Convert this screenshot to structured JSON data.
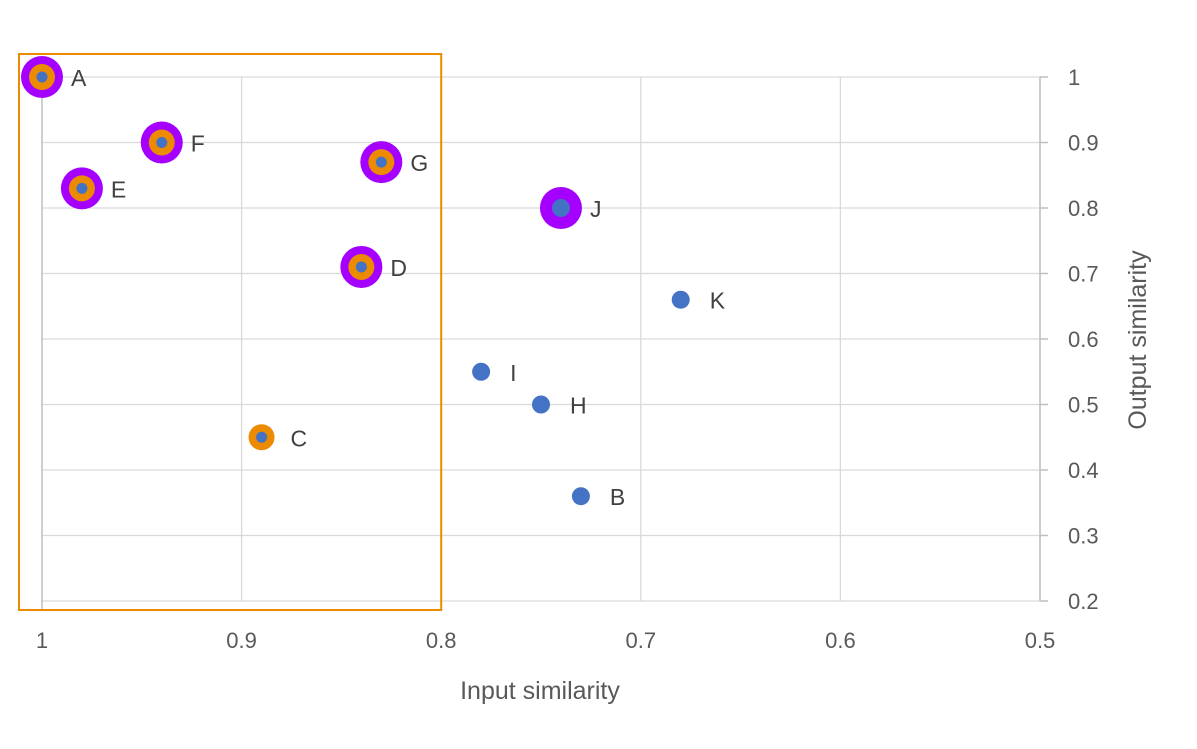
{
  "chart_data": {
    "type": "scatter",
    "title": "",
    "xlabel": "Input similarity",
    "ylabel": "Output similarity",
    "xlim": [
      1,
      0.5
    ],
    "ylim": [
      0.2,
      1
    ],
    "x_reversed": true,
    "y_axis_side": "right",
    "grid": true,
    "xticks": [
      "1",
      "0.9",
      "0.8",
      "0.7",
      "0.6",
      "0.5"
    ],
    "xtick_values": [
      1,
      0.9,
      0.8,
      0.7,
      0.6,
      0.5
    ],
    "yticks": [
      "0.2",
      "0.3",
      "0.4",
      "0.5",
      "0.6",
      "0.7",
      "0.8",
      "0.9",
      "1"
    ],
    "ytick_values": [
      0.2,
      0.3,
      0.4,
      0.5,
      0.6,
      0.7,
      0.8,
      0.9,
      1
    ],
    "highlight_region": {
      "x_range": [
        1,
        0.8
      ],
      "y_range": [
        0.2,
        1
      ],
      "color": "#ED8B00"
    },
    "colors": {
      "point": "#4472C4",
      "orange_ring": "#ED8B00",
      "purple_ring": "#A500FF",
      "grid": "#D9D9D9",
      "axis": "#BFBFBF"
    },
    "points": [
      {
        "label": "A",
        "x": 1.0,
        "y": 1.0,
        "orange": true,
        "purple": true
      },
      {
        "label": "F",
        "x": 0.94,
        "y": 0.9,
        "orange": true,
        "purple": true
      },
      {
        "label": "E",
        "x": 0.98,
        "y": 0.83,
        "orange": true,
        "purple": true
      },
      {
        "label": "G",
        "x": 0.83,
        "y": 0.87,
        "orange": true,
        "purple": true
      },
      {
        "label": "D",
        "x": 0.84,
        "y": 0.71,
        "orange": true,
        "purple": true
      },
      {
        "label": "C",
        "x": 0.89,
        "y": 0.45,
        "orange": true,
        "purple": false
      },
      {
        "label": "J",
        "x": 0.74,
        "y": 0.8,
        "orange": false,
        "purple": true
      },
      {
        "label": "K",
        "x": 0.68,
        "y": 0.66,
        "orange": false,
        "purple": false
      },
      {
        "label": "I",
        "x": 0.78,
        "y": 0.55,
        "orange": false,
        "purple": false
      },
      {
        "label": "H",
        "x": 0.75,
        "y": 0.5,
        "orange": false,
        "purple": false
      },
      {
        "label": "B",
        "x": 0.73,
        "y": 0.36,
        "orange": false,
        "purple": false
      }
    ]
  }
}
